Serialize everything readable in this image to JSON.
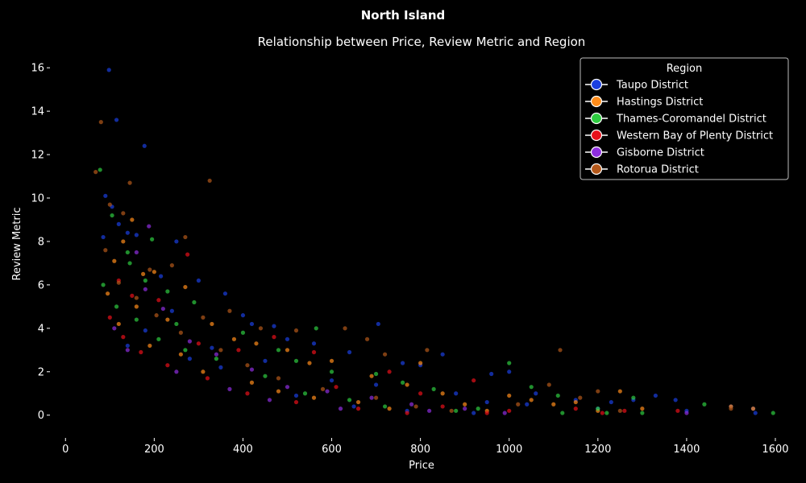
{
  "chart_data": {
    "type": "scatter",
    "suptitle": "North Island",
    "title": "Relationship between Price, Review Metric and Region",
    "xlabel": "Price",
    "ylabel": "Review Metric",
    "xlim": [
      -35,
      1640
    ],
    "ylim": [
      -0.9,
      16.6
    ],
    "xticks": [
      0,
      200,
      400,
      600,
      800,
      1000,
      1200,
      1400,
      1600
    ],
    "yticks": [
      0,
      2,
      4,
      6,
      8,
      10,
      12,
      14,
      16
    ],
    "grid": false,
    "background": "#000000",
    "legend": {
      "title": "Region",
      "placement": "top-right"
    },
    "series": [
      {
        "name": "Taupo District",
        "color": "#1a3fe0",
        "points": [
          [
            98,
            15.9
          ],
          [
            115,
            13.6
          ],
          [
            178,
            12.4
          ],
          [
            90,
            10.1
          ],
          [
            105,
            9.6
          ],
          [
            120,
            8.8
          ],
          [
            85,
            8.2
          ],
          [
            140,
            8.4
          ],
          [
            160,
            8.3
          ],
          [
            250,
            8.0
          ],
          [
            215,
            6.4
          ],
          [
            300,
            6.2
          ],
          [
            360,
            5.6
          ],
          [
            400,
            4.6
          ],
          [
            420,
            4.2
          ],
          [
            470,
            4.1
          ],
          [
            705,
            4.2
          ],
          [
            500,
            3.5
          ],
          [
            560,
            3.3
          ],
          [
            640,
            2.9
          ],
          [
            760,
            2.4
          ],
          [
            800,
            2.3
          ],
          [
            850,
            2.8
          ],
          [
            960,
            1.9
          ],
          [
            1000,
            2.0
          ],
          [
            1060,
            1.0
          ],
          [
            1150,
            0.7
          ],
          [
            1200,
            0.3
          ],
          [
            1230,
            0.6
          ],
          [
            1280,
            0.7
          ],
          [
            1330,
            0.9
          ],
          [
            1375,
            0.7
          ],
          [
            1400,
            0.2
          ],
          [
            1500,
            0.4
          ],
          [
            1550,
            0.3
          ],
          [
            1555,
            0.1
          ],
          [
            240,
            4.8
          ],
          [
            180,
            3.9
          ],
          [
            140,
            3.2
          ],
          [
            330,
            3.1
          ],
          [
            280,
            2.6
          ],
          [
            350,
            2.2
          ],
          [
            450,
            2.5
          ],
          [
            600,
            1.6
          ],
          [
            700,
            1.4
          ],
          [
            880,
            1.0
          ],
          [
            950,
            0.6
          ],
          [
            1040,
            0.5
          ],
          [
            520,
            0.9
          ],
          [
            650,
            0.4
          ],
          [
            770,
            0.2
          ],
          [
            920,
            0.1
          ]
        ]
      },
      {
        "name": "Hastings District",
        "color": "#ff8c1a",
        "points": [
          [
            150,
            9.0
          ],
          [
            130,
            8.0
          ],
          [
            110,
            7.1
          ],
          [
            175,
            6.5
          ],
          [
            200,
            6.6
          ],
          [
            270,
            5.9
          ],
          [
            160,
            5.0
          ],
          [
            330,
            4.2
          ],
          [
            230,
            4.4
          ],
          [
            380,
            3.5
          ],
          [
            430,
            3.3
          ],
          [
            500,
            3.0
          ],
          [
            550,
            2.4
          ],
          [
            600,
            2.5
          ],
          [
            690,
            1.8
          ],
          [
            770,
            1.4
          ],
          [
            800,
            2.4
          ],
          [
            850,
            1.0
          ],
          [
            900,
            0.5
          ],
          [
            1000,
            0.9
          ],
          [
            1050,
            0.7
          ],
          [
            1100,
            0.5
          ],
          [
            1150,
            0.6
          ],
          [
            1200,
            0.2
          ],
          [
            1250,
            1.1
          ],
          [
            1300,
            0.3
          ],
          [
            1500,
            0.4
          ],
          [
            1550,
            0.3
          ],
          [
            95,
            5.6
          ],
          [
            120,
            4.2
          ],
          [
            190,
            3.2
          ],
          [
            260,
            2.8
          ],
          [
            310,
            2.0
          ],
          [
            420,
            1.5
          ],
          [
            480,
            1.1
          ],
          [
            560,
            0.8
          ],
          [
            660,
            0.6
          ],
          [
            730,
            0.3
          ],
          [
            950,
            0.2
          ]
        ]
      },
      {
        "name": "Thames-Coromandel District",
        "color": "#2ecc40",
        "points": [
          [
            78,
            11.3
          ],
          [
            105,
            9.2
          ],
          [
            140,
            7.5
          ],
          [
            195,
            8.1
          ],
          [
            145,
            7.0
          ],
          [
            230,
            5.7
          ],
          [
            180,
            6.2
          ],
          [
            290,
            5.2
          ],
          [
            250,
            4.2
          ],
          [
            400,
            3.8
          ],
          [
            565,
            4.0
          ],
          [
            480,
            3.0
          ],
          [
            520,
            2.5
          ],
          [
            600,
            2.0
          ],
          [
            700,
            1.9
          ],
          [
            760,
            1.5
          ],
          [
            830,
            1.2
          ],
          [
            1000,
            2.4
          ],
          [
            1050,
            1.3
          ],
          [
            1110,
            0.9
          ],
          [
            1200,
            0.3
          ],
          [
            1280,
            0.8
          ],
          [
            1300,
            0.1
          ],
          [
            1440,
            0.5
          ],
          [
            1595,
            0.1
          ],
          [
            85,
            6.0
          ],
          [
            115,
            5.0
          ],
          [
            160,
            4.4
          ],
          [
            210,
            3.5
          ],
          [
            270,
            3.0
          ],
          [
            340,
            2.6
          ],
          [
            450,
            1.8
          ],
          [
            540,
            1.0
          ],
          [
            640,
            0.7
          ],
          [
            720,
            0.4
          ],
          [
            880,
            0.2
          ],
          [
            930,
            0.3
          ],
          [
            1120,
            0.1
          ],
          [
            1220,
            0.1
          ]
        ]
      },
      {
        "name": "Western Bay of Plenty District",
        "color": "#e8101a",
        "points": [
          [
            120,
            6.2
          ],
          [
            150,
            5.5
          ],
          [
            275,
            7.4
          ],
          [
            210,
            5.3
          ],
          [
            300,
            3.3
          ],
          [
            390,
            3.0
          ],
          [
            470,
            3.6
          ],
          [
            560,
            2.9
          ],
          [
            610,
            1.3
          ],
          [
            730,
            2.0
          ],
          [
            800,
            1.0
          ],
          [
            850,
            0.4
          ],
          [
            920,
            1.6
          ],
          [
            1000,
            0.2
          ],
          [
            1150,
            0.3
          ],
          [
            1210,
            0.1
          ],
          [
            1260,
            0.2
          ],
          [
            1380,
            0.2
          ],
          [
            100,
            4.5
          ],
          [
            130,
            3.6
          ],
          [
            170,
            2.9
          ],
          [
            230,
            2.3
          ],
          [
            320,
            1.7
          ],
          [
            410,
            1.0
          ],
          [
            520,
            0.6
          ],
          [
            660,
            0.3
          ],
          [
            770,
            0.1
          ],
          [
            950,
            0.1
          ]
        ]
      },
      {
        "name": "Gisborne District",
        "color": "#8e2ee0",
        "points": [
          [
            188,
            8.7
          ],
          [
            160,
            7.5
          ],
          [
            180,
            5.8
          ],
          [
            220,
            4.9
          ],
          [
            280,
            3.4
          ],
          [
            340,
            2.8
          ],
          [
            420,
            2.1
          ],
          [
            500,
            1.3
          ],
          [
            590,
            1.1
          ],
          [
            690,
            0.8
          ],
          [
            780,
            0.5
          ],
          [
            900,
            0.3
          ],
          [
            990,
            0.1
          ],
          [
            1400,
            0.1
          ],
          [
            110,
            4.0
          ],
          [
            140,
            3.0
          ],
          [
            250,
            2.0
          ],
          [
            370,
            1.2
          ],
          [
            460,
            0.7
          ],
          [
            620,
            0.3
          ],
          [
            820,
            0.2
          ]
        ]
      },
      {
        "name": "Rotorua District",
        "color": "#b4581a",
        "points": [
          [
            80,
            13.5
          ],
          [
            68,
            11.2
          ],
          [
            145,
            10.7
          ],
          [
            325,
            10.8
          ],
          [
            100,
            9.7
          ],
          [
            130,
            9.3
          ],
          [
            270,
            8.2
          ],
          [
            240,
            6.9
          ],
          [
            190,
            6.7
          ],
          [
            310,
            4.5
          ],
          [
            370,
            4.8
          ],
          [
            440,
            4.0
          ],
          [
            520,
            3.9
          ],
          [
            630,
            4.0
          ],
          [
            680,
            3.5
          ],
          [
            720,
            2.8
          ],
          [
            815,
            3.0
          ],
          [
            1090,
            1.4
          ],
          [
            1115,
            3.0
          ],
          [
            1160,
            0.8
          ],
          [
            1200,
            1.1
          ],
          [
            1500,
            0.3
          ],
          [
            90,
            7.6
          ],
          [
            120,
            6.1
          ],
          [
            160,
            5.4
          ],
          [
            205,
            4.6
          ],
          [
            260,
            3.8
          ],
          [
            350,
            3.0
          ],
          [
            410,
            2.3
          ],
          [
            480,
            1.7
          ],
          [
            580,
            1.2
          ],
          [
            700,
            0.8
          ],
          [
            790,
            0.4
          ],
          [
            870,
            0.2
          ],
          [
            1020,
            0.5
          ],
          [
            1250,
            0.2
          ]
        ]
      }
    ]
  }
}
